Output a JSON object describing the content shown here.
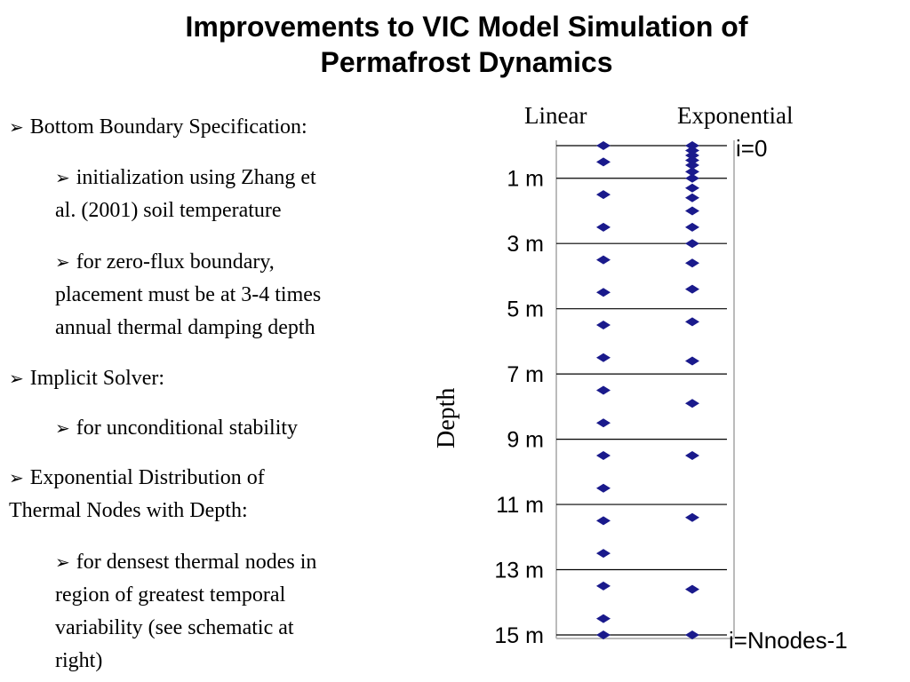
{
  "title": {
    "line1": "Improvements to VIC Model Simulation of",
    "line2": "Permafrost Dynamics"
  },
  "bullets": {
    "b1": "Bottom Boundary Specification:",
    "b1a_l1": "initialization using Zhang et",
    "b1a_l2": "al. (2001) soil temperature",
    "b1b_l1": "for zero-flux boundary,",
    "b1b_l2": "placement must be at 3-4 times",
    "b1b_l3": "annual thermal damping depth",
    "b2": "Implicit Solver:",
    "b2a": "for unconditional stability",
    "b3_l1": "Exponential Distribution of",
    "b3_l2": "Thermal Nodes with Depth:",
    "b3a_l1": "for densest thermal nodes in",
    "b3a_l2": "region of greatest temporal",
    "b3a_l3": "variability (see schematic at",
    "b3a_l4": "right)"
  },
  "figure": {
    "col_linear": "Linear",
    "col_exponential": "Exponential",
    "axis_label": "Depth",
    "top_label": "i=0",
    "bottom_label": "i=Nnodes-1",
    "depth_ticks": [
      "1 m",
      "3 m",
      "5 m",
      "7 m",
      "9 m",
      "11 m",
      "13 m",
      "15 m"
    ],
    "node_color": "#1a1a8c",
    "linear_nodes_m": [
      0,
      0.5,
      1.5,
      2.5,
      3.5,
      4.5,
      5.5,
      6.5,
      7.5,
      8.5,
      9.5,
      10.5,
      11.5,
      12.5,
      13.5,
      14.5,
      15
    ],
    "exponential_nodes_m": [
      0,
      0.15,
      0.3,
      0.45,
      0.6,
      0.8,
      1.0,
      1.3,
      1.6,
      2.0,
      2.5,
      3.0,
      3.6,
      4.4,
      5.4,
      6.6,
      7.9,
      9.5,
      11.4,
      13.6,
      15
    ]
  }
}
